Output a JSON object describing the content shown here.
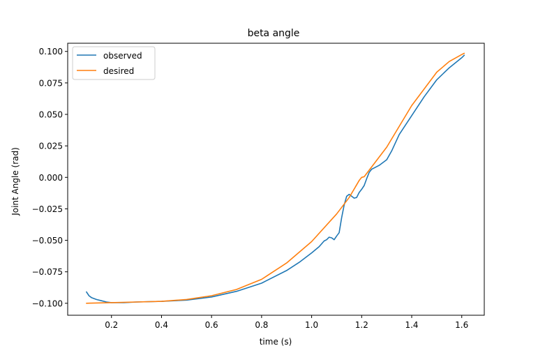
{
  "chart_data": {
    "type": "line",
    "title": "beta angle",
    "xlabel": "time (s)",
    "ylabel": "Joint Angle (rad)",
    "xlim": [
      0.025,
      1.69
    ],
    "ylim": [
      -0.1095,
      0.1065
    ],
    "xticks": [
      0.2,
      0.4,
      0.6,
      0.8,
      1.0,
      1.2,
      1.4,
      1.6
    ],
    "xtick_labels": [
      "0.2",
      "0.4",
      "0.6",
      "0.8",
      "1.0",
      "1.2",
      "1.4",
      "1.6"
    ],
    "yticks": [
      -0.1,
      -0.075,
      -0.05,
      -0.025,
      0.0,
      0.025,
      0.05,
      0.075,
      0.1
    ],
    "ytick_labels": [
      "−0.100",
      "−0.075",
      "−0.050",
      "−0.025",
      "0.000",
      "0.025",
      "0.050",
      "0.075",
      "0.100"
    ],
    "grid": false,
    "legend_position": "top-left",
    "series": [
      {
        "name": "observed",
        "color": "#1f77b4",
        "x": [
          0.1,
          0.11,
          0.12,
          0.14,
          0.16,
          0.18,
          0.2,
          0.25,
          0.3,
          0.4,
          0.5,
          0.6,
          0.7,
          0.8,
          0.9,
          0.95,
          1.0,
          1.03,
          1.05,
          1.06,
          1.07,
          1.08,
          1.09,
          1.1,
          1.11,
          1.12,
          1.13,
          1.14,
          1.15,
          1.16,
          1.17,
          1.18,
          1.19,
          1.2,
          1.21,
          1.22,
          1.23,
          1.24,
          1.25,
          1.27,
          1.3,
          1.32,
          1.35,
          1.4,
          1.45,
          1.5,
          1.55,
          1.6,
          1.61
        ],
        "y": [
          -0.091,
          -0.094,
          -0.0955,
          -0.097,
          -0.098,
          -0.099,
          -0.0995,
          -0.0995,
          -0.099,
          -0.0985,
          -0.0975,
          -0.095,
          -0.0905,
          -0.084,
          -0.074,
          -0.0675,
          -0.06,
          -0.055,
          -0.0505,
          -0.0495,
          -0.0475,
          -0.048,
          -0.0495,
          -0.0465,
          -0.044,
          -0.032,
          -0.022,
          -0.015,
          -0.0135,
          -0.015,
          -0.0165,
          -0.016,
          -0.012,
          -0.0095,
          -0.0065,
          -0.001,
          0.004,
          0.0065,
          0.0075,
          0.0095,
          0.014,
          0.021,
          0.034,
          0.049,
          0.064,
          0.0775,
          0.087,
          0.095,
          0.097
        ]
      },
      {
        "name": "desired",
        "color": "#ff7f0e",
        "x": [
          0.1,
          0.2,
          0.3,
          0.4,
          0.5,
          0.6,
          0.7,
          0.8,
          0.9,
          1.0,
          1.1,
          1.15,
          1.19,
          1.2,
          1.21,
          1.3,
          1.4,
          1.5,
          1.55,
          1.6,
          1.61
        ],
        "y": [
          -0.1,
          -0.0995,
          -0.099,
          -0.0985,
          -0.097,
          -0.094,
          -0.089,
          -0.081,
          -0.068,
          -0.051,
          -0.029,
          -0.016,
          -0.0025,
          0.0,
          0.0005,
          0.024,
          0.057,
          0.0835,
          0.092,
          0.0975,
          0.0985
        ]
      }
    ]
  }
}
